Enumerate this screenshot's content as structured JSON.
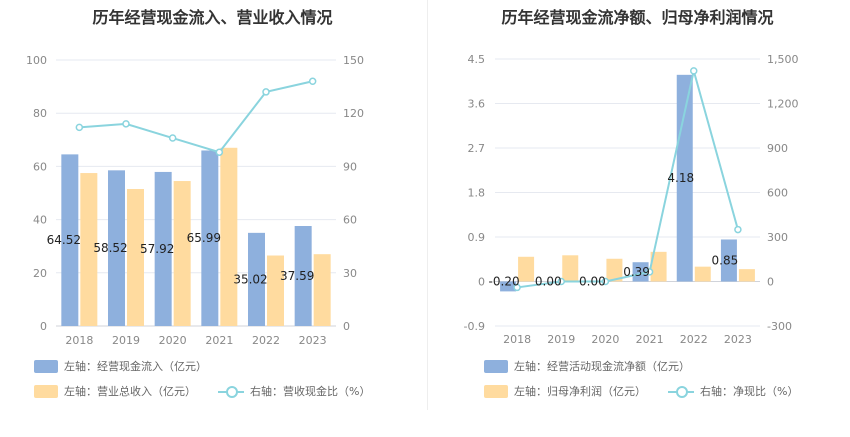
{
  "chart_data": [
    {
      "type": "bar",
      "title": "历年经营现金流入、营业收入情况",
      "categories": [
        "2018",
        "2019",
        "2020",
        "2021",
        "2022",
        "2023"
      ],
      "y_left": {
        "lim": [
          0,
          100
        ],
        "ticks": [
          "0",
          "20",
          "40",
          "60",
          "80",
          "100"
        ]
      },
      "y_right": {
        "lim": [
          0,
          150
        ],
        "ticks": [
          "0",
          "30",
          "60",
          "90",
          "120",
          "150"
        ]
      },
      "grid": true,
      "legend_position": "bottom-left",
      "series": [
        {
          "name": "左轴：经营现金流入（亿元）",
          "type": "bar",
          "axis": "left",
          "color": "#8eb0dd",
          "values": [
            64.52,
            58.52,
            57.92,
            65.99,
            35.02,
            37.59
          ],
          "labels": [
            "64.52",
            "58.52",
            "57.92",
            "65.99",
            "35.02",
            "37.59"
          ]
        },
        {
          "name": "左轴：营业总收入（亿元）",
          "type": "bar",
          "axis": "left",
          "color": "#ffdb9f",
          "values": [
            57.5,
            51.5,
            54.5,
            67.0,
            26.5,
            27.0
          ]
        },
        {
          "name": "右轴：营收现金比（%）",
          "type": "line",
          "axis": "right",
          "color": "#8ad4de",
          "values": [
            112,
            114,
            106,
            98,
            132,
            138
          ]
        }
      ]
    },
    {
      "type": "bar",
      "title": "历年经营现金流净额、归母净利润情况",
      "categories": [
        "2018",
        "2019",
        "2020",
        "2021",
        "2022",
        "2023"
      ],
      "y_left": {
        "lim": [
          -0.9,
          4.5
        ],
        "ticks": [
          "-0.9",
          "0",
          "0.9",
          "1.8",
          "2.7",
          "3.6",
          "4.5"
        ]
      },
      "y_right": {
        "lim": [
          -300,
          1500
        ],
        "ticks": [
          "-300",
          "0",
          "300",
          "600",
          "900",
          "1,200",
          "1,500"
        ]
      },
      "grid": true,
      "legend_position": "bottom-left",
      "series": [
        {
          "name": "左轴：经营活动现金流净额（亿元）",
          "type": "bar",
          "axis": "left",
          "color": "#8eb0dd",
          "values": [
            -0.2,
            0.0,
            0.0,
            0.39,
            4.18,
            0.85
          ],
          "labels": [
            "-0.20",
            "0.00",
            "0.00",
            "0.39",
            "4.18",
            "0.85"
          ]
        },
        {
          "name": "左轴：归母净利润（亿元）",
          "type": "bar",
          "axis": "left",
          "color": "#ffdb9f",
          "values": [
            0.5,
            0.53,
            0.46,
            0.6,
            0.3,
            0.25
          ]
        },
        {
          "name": "右轴：净现比（%）",
          "type": "line",
          "axis": "right",
          "color": "#8ad4de",
          "values": [
            -40,
            0,
            0,
            65,
            1420,
            350
          ]
        }
      ]
    }
  ]
}
